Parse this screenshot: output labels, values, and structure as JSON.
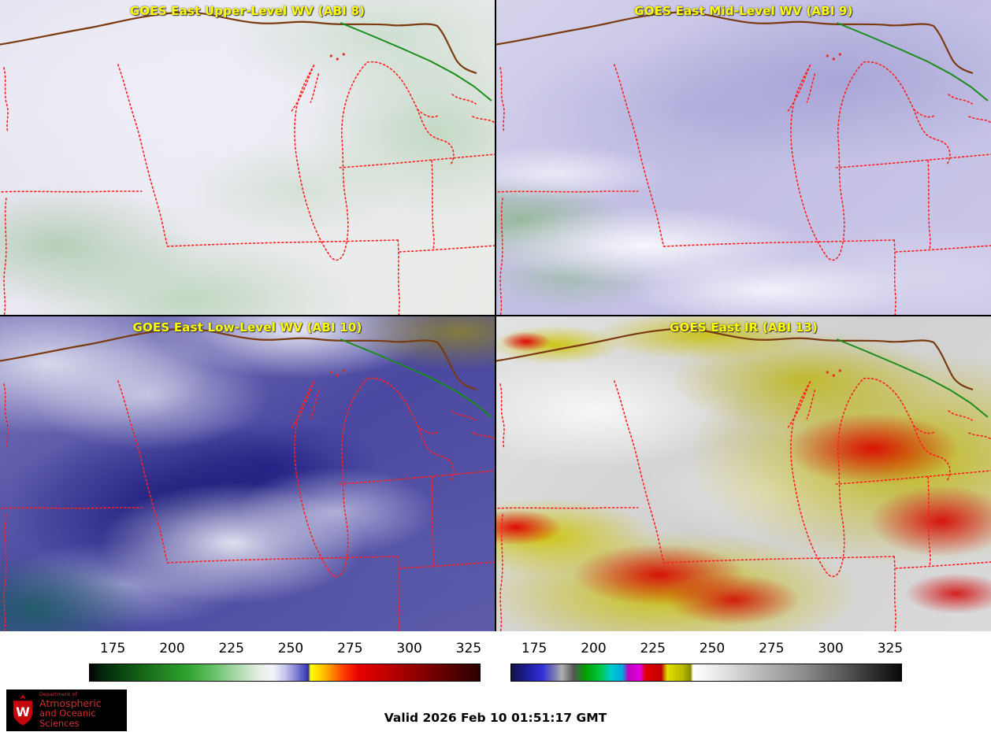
{
  "panels": [
    {
      "id": "upper-wv",
      "title": "GOES East Upper-Level WV (ABI 8)"
    },
    {
      "id": "mid-wv",
      "title": "GOES East Mid-Level WV (ABI 9)"
    },
    {
      "id": "low-wv",
      "title": "GOES East Low-Level WV (ABI 10)"
    },
    {
      "id": "ir",
      "title": "GOES East IR (ABI 13)"
    }
  ],
  "chart_data": [
    {
      "type": "heatmap",
      "name": "water-vapor-brightness-temperature-colorbar",
      "units": "K",
      "ticks": [
        175,
        200,
        225,
        250,
        275,
        300,
        325
      ],
      "range": [
        165,
        330
      ],
      "legend_position": "below-left-panels",
      "stops": [
        {
          "pos": 0,
          "color": "#050505"
        },
        {
          "pos": 3,
          "color": "#03240a"
        },
        {
          "pos": 9,
          "color": "#0c4a10"
        },
        {
          "pos": 17,
          "color": "#1d7a1e"
        },
        {
          "pos": 25,
          "color": "#2fa32f"
        },
        {
          "pos": 31,
          "color": "#5fbe5f"
        },
        {
          "pos": 37,
          "color": "#a2d6a2"
        },
        {
          "pos": 43,
          "color": "#e2eee2"
        },
        {
          "pos": 47,
          "color": "#f4f4fb"
        },
        {
          "pos": 50,
          "color": "#c6c6ec"
        },
        {
          "pos": 53,
          "color": "#8080d6"
        },
        {
          "pos": 55.5,
          "color": "#4040b8"
        },
        {
          "pos": 56,
          "color": "#2828a0"
        },
        {
          "pos": 56.6,
          "color": "#ffff00"
        },
        {
          "pos": 59,
          "color": "#ffd200"
        },
        {
          "pos": 62,
          "color": "#ff8c00"
        },
        {
          "pos": 65,
          "color": "#ff3c00"
        },
        {
          "pos": 69,
          "color": "#e80000"
        },
        {
          "pos": 76,
          "color": "#c00000"
        },
        {
          "pos": 84,
          "color": "#8e0000"
        },
        {
          "pos": 92,
          "color": "#5c0000"
        },
        {
          "pos": 100,
          "color": "#2a0000"
        }
      ]
    },
    {
      "type": "heatmap",
      "name": "ir-brightness-temperature-colorbar",
      "units": "K",
      "ticks": [
        175,
        200,
        225,
        250,
        275,
        300,
        325
      ],
      "range": [
        165,
        330
      ],
      "legend_position": "below-right-panels",
      "stops": [
        {
          "pos": 0,
          "color": "#131347"
        },
        {
          "pos": 4,
          "color": "#1d1d96"
        },
        {
          "pos": 8,
          "color": "#3030d8"
        },
        {
          "pos": 11,
          "color": "#7878b0"
        },
        {
          "pos": 13,
          "color": "#b0b0b0"
        },
        {
          "pos": 16,
          "color": "#565656"
        },
        {
          "pos": 19,
          "color": "#00a000"
        },
        {
          "pos": 23,
          "color": "#00c84a"
        },
        {
          "pos": 25.5,
          "color": "#00cccc"
        },
        {
          "pos": 28.5,
          "color": "#00a8e0"
        },
        {
          "pos": 30,
          "color": "#c000c0"
        },
        {
          "pos": 33,
          "color": "#e000e0"
        },
        {
          "pos": 34.5,
          "color": "#e00000"
        },
        {
          "pos": 38.5,
          "color": "#c00000"
        },
        {
          "pos": 40,
          "color": "#e0e000"
        },
        {
          "pos": 44,
          "color": "#b8b800"
        },
        {
          "pos": 46,
          "color": "#8a8a00"
        },
        {
          "pos": 46.6,
          "color": "#ffffff"
        },
        {
          "pos": 55,
          "color": "#e0e0e0"
        },
        {
          "pos": 65,
          "color": "#b4b4b4"
        },
        {
          "pos": 75,
          "color": "#8c8c8c"
        },
        {
          "pos": 85,
          "color": "#5a5a5a"
        },
        {
          "pos": 100,
          "color": "#080808"
        }
      ]
    }
  ],
  "footer": {
    "valid_time": "Valid 2026 Feb 10 01:51:17 GMT",
    "logo": {
      "letter": "W",
      "line1": "Department of",
      "line2": "Atmospheric",
      "line3": "and Oceanic Sciences"
    }
  },
  "colors": {
    "panel_title": "#ffff00",
    "state_boundary_red": "#ff2020",
    "shoreline_brown": "#7a3b10",
    "border_green": "#1a8c1a",
    "logo_bg": "#000000",
    "logo_red": "#d03030"
  }
}
